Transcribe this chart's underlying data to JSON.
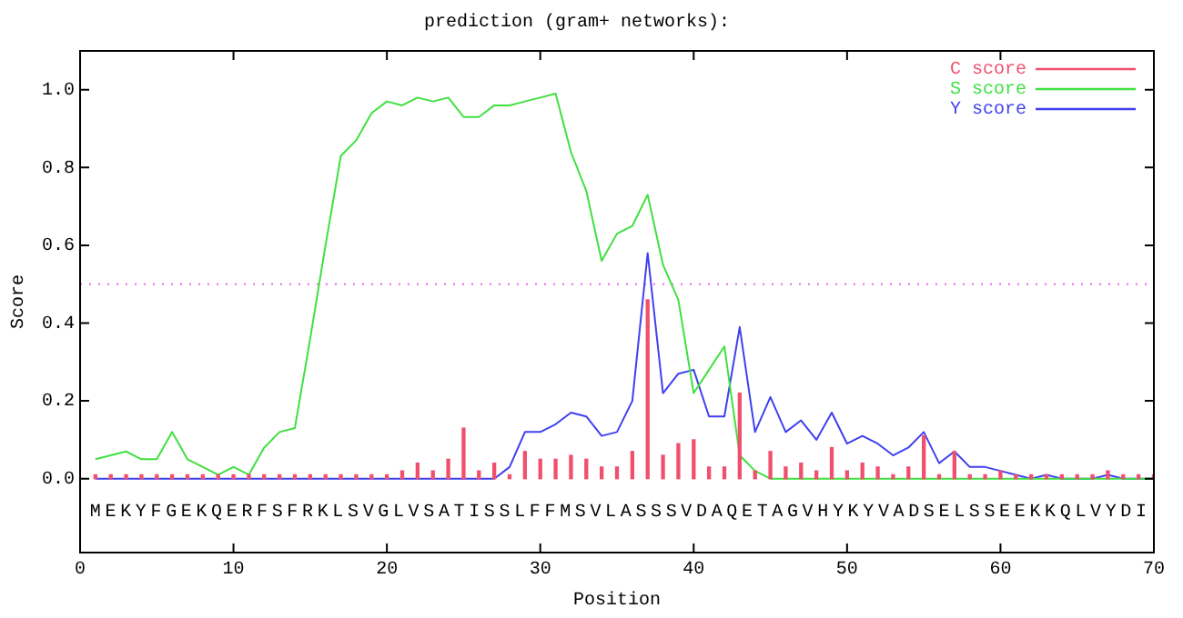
{
  "chart_data": {
    "type": "line",
    "title": "prediction (gram+ networks):",
    "xlabel": "Position",
    "ylabel": "Score",
    "x": [
      1,
      2,
      3,
      4,
      5,
      6,
      7,
      8,
      9,
      10,
      11,
      12,
      13,
      14,
      15,
      16,
      17,
      18,
      19,
      20,
      21,
      22,
      23,
      24,
      25,
      26,
      27,
      28,
      29,
      30,
      31,
      32,
      33,
      34,
      35,
      36,
      37,
      38,
      39,
      40,
      41,
      42,
      43,
      44,
      45,
      46,
      47,
      48,
      49,
      50,
      51,
      52,
      53,
      54,
      55,
      56,
      57,
      58,
      59,
      60,
      61,
      62,
      63,
      64,
      65,
      66,
      67,
      68,
      69,
      70
    ],
    "series": [
      {
        "name": "C score",
        "type": "bar",
        "color": "#f0506e",
        "values": [
          0.01,
          0.01,
          0.01,
          0.01,
          0.01,
          0.01,
          0.01,
          0.01,
          0.01,
          0.01,
          0.01,
          0.01,
          0.01,
          0.01,
          0.01,
          0.01,
          0.01,
          0.01,
          0.01,
          0.01,
          0.02,
          0.04,
          0.02,
          0.05,
          0.13,
          0.02,
          0.04,
          0.01,
          0.07,
          0.05,
          0.05,
          0.06,
          0.05,
          0.03,
          0.03,
          0.07,
          0.46,
          0.06,
          0.09,
          0.1,
          0.03,
          0.03,
          0.22,
          0.02,
          0.07,
          0.03,
          0.04,
          0.02,
          0.08,
          0.02,
          0.04,
          0.03,
          0.01,
          0.03,
          0.11,
          0.01,
          0.07,
          0.01,
          0.01,
          0.02,
          0.01,
          0.01,
          0.01,
          0.01,
          0.01,
          0.01,
          0.02,
          0.01,
          0.01,
          0.01
        ]
      },
      {
        "name": "S score",
        "color": "#40e040",
        "values": [
          0.05,
          0.06,
          0.07,
          0.05,
          0.05,
          0.12,
          0.05,
          0.03,
          0.01,
          0.03,
          0.01,
          0.08,
          0.12,
          0.13,
          0.36,
          0.6,
          0.83,
          0.87,
          0.94,
          0.97,
          0.96,
          0.98,
          0.97,
          0.98,
          0.93,
          0.93,
          0.96,
          0.96,
          0.97,
          0.98,
          0.99,
          0.84,
          0.74,
          0.56,
          0.63,
          0.65,
          0.73,
          0.55,
          0.46,
          0.22,
          0.28,
          0.34,
          0.06,
          0.02,
          0,
          0,
          0,
          0,
          0,
          0,
          0,
          0,
          0,
          0,
          0,
          0,
          0,
          0,
          0,
          0,
          0,
          0,
          0,
          0,
          0,
          0,
          0,
          0,
          0,
          0
        ]
      },
      {
        "name": "Y score",
        "color": "#4040f0",
        "values": [
          0,
          0,
          0,
          0,
          0,
          0,
          0,
          0,
          0,
          0,
          0,
          0,
          0,
          0,
          0,
          0,
          0,
          0,
          0,
          0,
          0,
          0,
          0,
          0,
          0,
          0,
          0,
          0.03,
          0.12,
          0.12,
          0.14,
          0.17,
          0.16,
          0.11,
          0.12,
          0.2,
          0.58,
          0.22,
          0.27,
          0.28,
          0.16,
          0.16,
          0.39,
          0.12,
          0.21,
          0.12,
          0.15,
          0.1,
          0.17,
          0.09,
          0.11,
          0.09,
          0.06,
          0.08,
          0.12,
          0.04,
          0.07,
          0.03,
          0.03,
          0.02,
          0.01,
          0,
          0.01,
          0,
          0,
          0,
          0.01,
          0,
          0,
          0
        ]
      }
    ],
    "xlim": [
      0,
      70
    ],
    "xticks": [
      0,
      10,
      20,
      30,
      40,
      50,
      60,
      70
    ],
    "ylim": [
      -0.19,
      1.1
    ],
    "yticks": [
      {
        "value": 0,
        "label": "0.0"
      },
      {
        "value": 0.2,
        "label": "0.2"
      },
      {
        "value": 0.4,
        "label": "0.4"
      },
      {
        "value": 0.6,
        "label": "0.6"
      },
      {
        "value": 0.8,
        "label": "0.8"
      },
      {
        "value": 1,
        "label": "1.0"
      }
    ],
    "ref_lines": [
      {
        "axis": "y",
        "value": 0.5,
        "color": "#f080f0",
        "line_style": "dotted"
      }
    ],
    "legend": "top right",
    "grid": false,
    "marker": "none",
    "annotations": [
      "MEKYFGEKQERFSFRKLSVGLVSATISSLFFMSVLASSSVDAQETAGVHYKYVADSELSSEEKKQLVYDI"
    ]
  }
}
